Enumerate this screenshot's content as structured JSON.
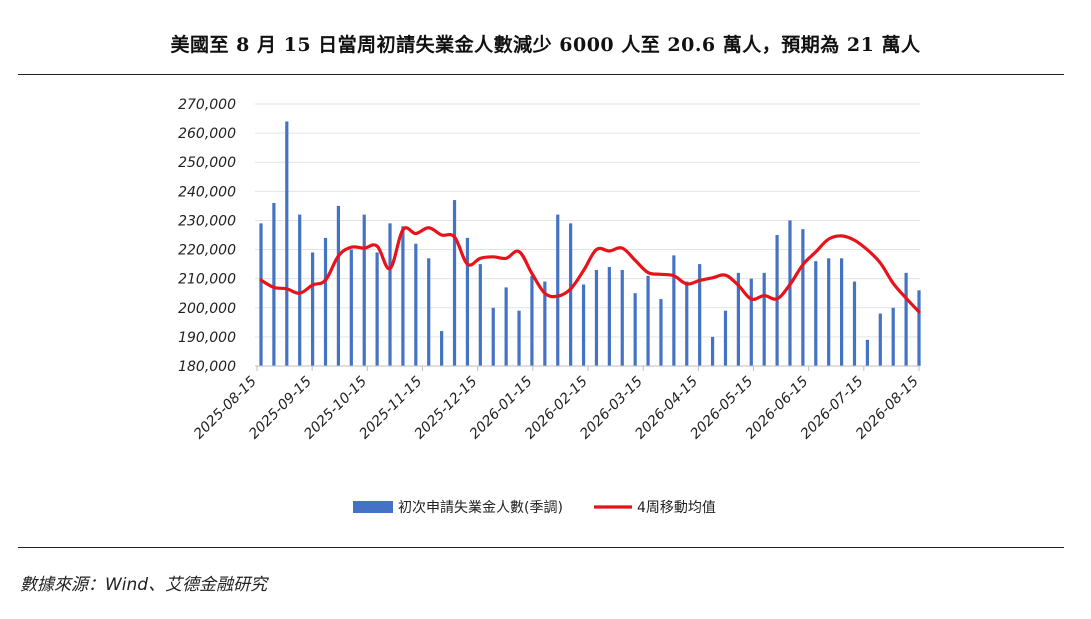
{
  "title": "美國至 8 月 15 日當周初請失業金人數減少 6000 人至 20.6 萬人，預期為 21 萬人",
  "source": "數據來源：Wind、艾德金融研究",
  "colors": {
    "bar": "#4472C4",
    "line": "#E8121A"
  },
  "chart_data": {
    "type": "bar",
    "ylim": [
      180000,
      270000
    ],
    "yticks": [
      "180,000",
      "190,000",
      "200,000",
      "210,000",
      "220,000",
      "230,000",
      "240,000",
      "250,000",
      "260,000",
      "270,000"
    ],
    "xticks": [
      "2025-08-15",
      "2025-09-15",
      "2025-10-15",
      "2025-11-15",
      "2025-12-15",
      "2026-01-15",
      "2026-02-15",
      "2026-03-15",
      "2026-04-15",
      "2026-05-15",
      "2026-06-15",
      "2026-07-15",
      "2026-08-15"
    ],
    "series": [
      {
        "name": "初次申請失業金人數(季調)",
        "type": "bar",
        "values": [
          229000,
          236000,
          264000,
          232000,
          219000,
          224000,
          235000,
          220000,
          232000,
          219000,
          229000,
          228000,
          222000,
          217000,
          192000,
          237000,
          224000,
          215000,
          200000,
          207000,
          199000,
          211000,
          209000,
          232000,
          229000,
          208000,
          213000,
          214000,
          213000,
          205000,
          211000,
          203000,
          218000,
          209000,
          215000,
          190000,
          199000,
          212000,
          210000,
          212000,
          225000,
          230000,
          227000,
          216000,
          217000,
          217000,
          209000,
          189000,
          198000,
          200000,
          212000,
          206000
        ]
      },
      {
        "name": "4周移動均值",
        "type": "line",
        "values": [
          209500,
          207000,
          206500,
          205000,
          207800,
          209500,
          217800,
          220800,
          220500,
          221200,
          213500,
          226800,
          225500,
          227500,
          225000,
          224300,
          215000,
          217000,
          217500,
          217000,
          219300,
          211800,
          205000,
          204000,
          206500,
          212800,
          220000,
          219500,
          220500,
          216300,
          212100,
          211500,
          211000,
          208200,
          209400,
          210300,
          211200,
          207700,
          203000,
          204200,
          203100,
          208000,
          214800,
          219200,
          223600,
          224700,
          223200,
          219900,
          215400,
          208400,
          203300,
          198600
        ]
      }
    ]
  }
}
